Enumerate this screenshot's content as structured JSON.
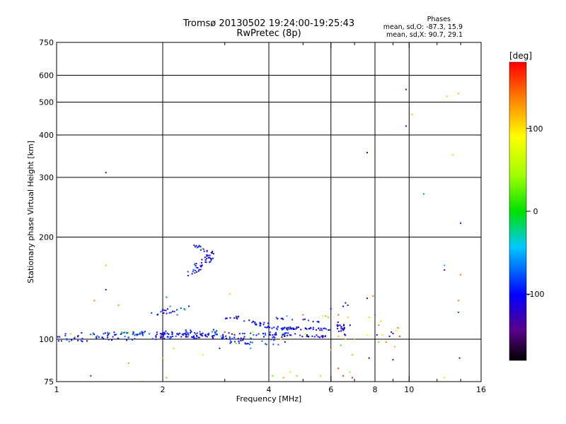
{
  "title": {
    "line1": "Tromsø 20130502 19:24:00-19:25:43",
    "line2": "RwPretec (8p)"
  },
  "stats": {
    "heading": "Phases",
    "o_line": "mean, sd,O: -87.3, 15.9",
    "x_line": "mean, sd,X: 90.7, 29.1"
  },
  "colorbar": {
    "unit_label": "[deg]",
    "ticks": [
      {
        "value": 100,
        "label": "100"
      },
      {
        "value": 0,
        "label": "0"
      },
      {
        "value": -100,
        "label": "-100"
      }
    ],
    "range": [
      -180,
      180
    ],
    "colormap": "rainbow"
  },
  "chart_data": {
    "type": "scatter",
    "title": "Tromsø 20130502 19:24:00-19:25:43 RwPretec (8p)",
    "xlabel": "Frequency [MHz]",
    "ylabel": "Stationary phase Virtual Height [km]",
    "xscale": "log",
    "yscale": "log",
    "xlim": [
      1,
      16
    ],
    "ylim": [
      75,
      750
    ],
    "xticks": [
      {
        "value": 1,
        "label": "1"
      },
      {
        "value": 2,
        "label": "2"
      },
      {
        "value": 4,
        "label": "4"
      },
      {
        "value": 6,
        "label": "6"
      },
      {
        "value": 8,
        "label": "8"
      },
      {
        "value": 10,
        "label": "10"
      },
      {
        "value": 16,
        "label": "16"
      }
    ],
    "xminorticks": [
      3,
      5,
      7,
      9,
      12,
      14
    ],
    "xgrid": [
      2,
      4,
      6,
      8,
      10
    ],
    "yticks": [
      {
        "value": 75,
        "label": "75"
      },
      {
        "value": 100,
        "label": "100"
      },
      {
        "value": 200,
        "label": "200"
      },
      {
        "value": 300,
        "label": "300"
      },
      {
        "value": 400,
        "label": "400"
      },
      {
        "value": 500,
        "label": "500"
      },
      {
        "value": 600,
        "label": "600"
      },
      {
        "value": 750,
        "label": "750"
      }
    ],
    "ygrid": [
      100,
      200,
      300,
      400,
      500,
      600
    ],
    "grid": true,
    "color_key": "phase in degrees",
    "traces": [
      {
        "f1": 1.0,
        "f2": 2.9,
        "h1": 101,
        "h2": 104,
        "spread": 3,
        "phase": -100,
        "n": 130
      },
      {
        "f1": 1.9,
        "f2": 3.2,
        "h1": 103,
        "h2": 102,
        "spread": 2,
        "phase": -115,
        "n": 70
      },
      {
        "f1": 1.85,
        "f2": 2.4,
        "h1": 119,
        "h2": 124,
        "spread": 2,
        "phase": -110,
        "n": 20
      },
      {
        "f1": 3.0,
        "f2": 3.3,
        "h1": 115,
        "h2": 116,
        "spread": 1,
        "phase": -115,
        "n": 10
      },
      {
        "f1": 3.4,
        "f2": 4.0,
        "h1": 113,
        "h2": 110,
        "spread": 1.5,
        "phase": -112,
        "n": 20
      },
      {
        "f1": 3.0,
        "f2": 4.5,
        "h1": 101,
        "h2": 100,
        "spread": 4,
        "phase": -100,
        "n": 60
      },
      {
        "f1": 3.9,
        "f2": 6.0,
        "h1": 108,
        "h2": 107,
        "spread": 1,
        "phase": -110,
        "n": 60
      },
      {
        "f1": 4.0,
        "f2": 5.8,
        "h1": 104,
        "h2": 102,
        "spread": 1,
        "phase": -115,
        "n": 35
      },
      {
        "f1": 4.2,
        "f2": 5.6,
        "h1": 115,
        "h2": 113,
        "spread": 1,
        "phase": -112,
        "n": 14
      },
      {
        "f1": 2.35,
        "f2": 2.8,
        "h1": 155,
        "h2": 178,
        "spread": 6,
        "phase": -112,
        "n": 45
      },
      {
        "f1": 2.45,
        "f2": 2.8,
        "h1": 188,
        "h2": 180,
        "spread": 3,
        "phase": -118,
        "n": 14
      },
      {
        "f1": 6.2,
        "f2": 6.6,
        "h1": 110,
        "h2": 106,
        "spread": 4,
        "phase": -110,
        "n": 20
      }
    ],
    "points": [
      {
        "x": 1.38,
        "y": 310,
        "phase": -140
      },
      {
        "x": 9.8,
        "y": 545,
        "phase": -140
      },
      {
        "x": 9.8,
        "y": 425,
        "phase": -150
      },
      {
        "x": 7.6,
        "y": 355,
        "phase": -115
      },
      {
        "x": 10.2,
        "y": 460,
        "phase": 115
      },
      {
        "x": 12.8,
        "y": 520,
        "phase": 110
      },
      {
        "x": 13.8,
        "y": 530,
        "phase": 115
      },
      {
        "x": 13.3,
        "y": 350,
        "phase": 105
      },
      {
        "x": 11.0,
        "y": 268,
        "phase": -70
      },
      {
        "x": 14.0,
        "y": 220,
        "phase": -105
      },
      {
        "x": 12.6,
        "y": 165,
        "phase": -60
      },
      {
        "x": 12.6,
        "y": 160,
        "phase": -130
      },
      {
        "x": 14.0,
        "y": 155,
        "phase": 140
      },
      {
        "x": 13.8,
        "y": 130,
        "phase": 140
      },
      {
        "x": 13.8,
        "y": 120,
        "phase": -80
      },
      {
        "x": 13.9,
        "y": 88,
        "phase": -140
      },
      {
        "x": 12.6,
        "y": 77,
        "phase": 60
      },
      {
        "x": 1.38,
        "y": 140,
        "phase": -130
      },
      {
        "x": 1.38,
        "y": 165,
        "phase": 120
      },
      {
        "x": 1.5,
        "y": 126,
        "phase": 130
      },
      {
        "x": 1.28,
        "y": 130,
        "phase": 140
      },
      {
        "x": 1.25,
        "y": 78,
        "phase": -90
      },
      {
        "x": 1.6,
        "y": 85,
        "phase": 130
      },
      {
        "x": 1.75,
        "y": 75,
        "phase": 60
      },
      {
        "x": 2.05,
        "y": 77,
        "phase": 130
      },
      {
        "x": 2.0,
        "y": 88,
        "phase": 30
      },
      {
        "x": 2.15,
        "y": 94,
        "phase": 50
      },
      {
        "x": 2.6,
        "y": 90,
        "phase": 100
      },
      {
        "x": 2.9,
        "y": 94,
        "phase": -140
      },
      {
        "x": 3.55,
        "y": 94,
        "phase": -60
      },
      {
        "x": 3.1,
        "y": 136,
        "phase": 110
      },
      {
        "x": 4.1,
        "y": 78,
        "phase": 30
      },
      {
        "x": 4.4,
        "y": 77,
        "phase": 130
      },
      {
        "x": 4.8,
        "y": 78,
        "phase": 120
      },
      {
        "x": 5.6,
        "y": 78,
        "phase": 110
      },
      {
        "x": 6.0,
        "y": 93,
        "phase": 120
      },
      {
        "x": 4.6,
        "y": 80,
        "phase": 60
      },
      {
        "x": 6.3,
        "y": 82,
        "phase": 160
      },
      {
        "x": 6.5,
        "y": 78,
        "phase": 160
      },
      {
        "x": 6.8,
        "y": 80,
        "phase": 40
      },
      {
        "x": 6.9,
        "y": 77,
        "phase": 170
      },
      {
        "x": 6.9,
        "y": 90,
        "phase": 40
      },
      {
        "x": 7.0,
        "y": 100,
        "phase": 120
      },
      {
        "x": 6.4,
        "y": 96,
        "phase": 10
      },
      {
        "x": 6.6,
        "y": 100,
        "phase": 100
      },
      {
        "x": 6.3,
        "y": 102,
        "phase": 120
      },
      {
        "x": 6.3,
        "y": 118,
        "phase": 150
      },
      {
        "x": 6.5,
        "y": 125,
        "phase": -110
      },
      {
        "x": 6.6,
        "y": 128,
        "phase": -120
      },
      {
        "x": 6.7,
        "y": 126,
        "phase": -140
      },
      {
        "x": 6.7,
        "y": 116,
        "phase": 110
      },
      {
        "x": 6.8,
        "y": 110,
        "phase": -110
      },
      {
        "x": 7.6,
        "y": 132,
        "phase": -120
      },
      {
        "x": 7.7,
        "y": 88,
        "phase": -120
      },
      {
        "x": 7.6,
        "y": 103,
        "phase": 90
      },
      {
        "x": 7.7,
        "y": 116,
        "phase": 110
      },
      {
        "x": 7.9,
        "y": 134,
        "phase": 140
      },
      {
        "x": 8.0,
        "y": 118,
        "phase": -70
      },
      {
        "x": 8.1,
        "y": 103,
        "phase": -130
      },
      {
        "x": 8.2,
        "y": 110,
        "phase": 140
      },
      {
        "x": 8.3,
        "y": 113,
        "phase": 50
      },
      {
        "x": 8.2,
        "y": 98,
        "phase": 20
      },
      {
        "x": 8.4,
        "y": 103,
        "phase": 100
      },
      {
        "x": 8.8,
        "y": 102,
        "phase": -120
      },
      {
        "x": 8.9,
        "y": 105,
        "phase": -100
      },
      {
        "x": 9.0,
        "y": 104,
        "phase": -130
      },
      {
        "x": 9.2,
        "y": 106,
        "phase": 90
      },
      {
        "x": 9.3,
        "y": 108,
        "phase": 140
      },
      {
        "x": 9.0,
        "y": 87,
        "phase": -150
      },
      {
        "x": 9.1,
        "y": 95,
        "phase": 120
      },
      {
        "x": 8.6,
        "y": 98,
        "phase": 140
      },
      {
        "x": 9.4,
        "y": 102,
        "phase": 160
      },
      {
        "x": 5.8,
        "y": 117,
        "phase": 130
      },
      {
        "x": 6.0,
        "y": 123,
        "phase": -100
      },
      {
        "x": 5.9,
        "y": 116,
        "phase": 30
      },
      {
        "x": 5.7,
        "y": 117,
        "phase": 60
      },
      {
        "x": 5.0,
        "y": 118,
        "phase": 140
      },
      {
        "x": 4.5,
        "y": 117,
        "phase": -30
      },
      {
        "x": 3.6,
        "y": 105,
        "phase": 60
      },
      {
        "x": 1.6,
        "y": 104,
        "phase": 70
      },
      {
        "x": 2.05,
        "y": 133,
        "phase": -70
      },
      {
        "x": 2.1,
        "y": 125,
        "phase": -70
      },
      {
        "x": 2.2,
        "y": 118,
        "phase": -70
      },
      {
        "x": 3.0,
        "y": 105,
        "phase": 160
      }
    ]
  }
}
